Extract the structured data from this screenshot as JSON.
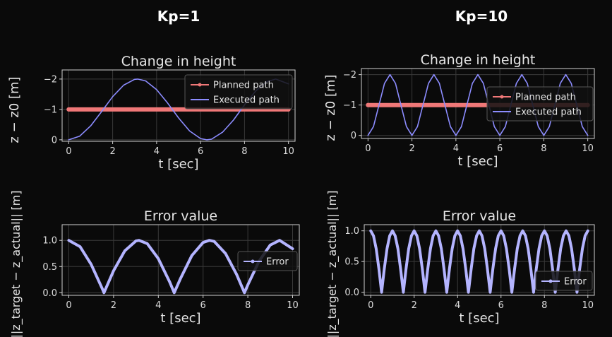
{
  "columns": [
    {
      "title": "Kp=1"
    },
    {
      "title": "Kp=10"
    }
  ],
  "colors": {
    "background": "#0a0a0a",
    "planned": "#f07878",
    "executed": "#8c8cff",
    "error": "#b4b4ff",
    "grid": "#3a3a3a",
    "axis": "#d0d0d0"
  },
  "chart_data": [
    {
      "id": "kp1-height",
      "type": "line",
      "title": "Change in height",
      "xlabel": "t [sec]",
      "ylabel": "z − z0 [m]",
      "xlim": [
        -0.3,
        10.3
      ],
      "ylim": [
        0.05,
        -2.3
      ],
      "y_inverted": true,
      "x_ticks": [
        0,
        2,
        4,
        6,
        8,
        10
      ],
      "y_ticks": [
        -2,
        -1,
        0
      ],
      "x_tick_labels": [
        "0",
        "2",
        "4",
        "6",
        "8",
        "10"
      ],
      "y_tick_labels": [
        "−2",
        "−1",
        "0"
      ],
      "grid": true,
      "legend": "upper-right",
      "series": [
        {
          "name": "Planned path",
          "role": "planned",
          "x": [
            0,
            10
          ],
          "y": [
            -1,
            -1
          ]
        },
        {
          "name": "Executed path",
          "role": "executed",
          "x": [
            0,
            0.5,
            1,
            1.5,
            2,
            2.5,
            3,
            3.14,
            3.5,
            4,
            4.5,
            5,
            5.5,
            6,
            6.28,
            6.5,
            7,
            7.5,
            8,
            8.5,
            9,
            9.42,
            10
          ],
          "y": [
            0,
            -0.12,
            -0.46,
            -0.93,
            -1.42,
            -1.8,
            -1.99,
            -2.0,
            -1.94,
            -1.65,
            -1.21,
            -0.72,
            -0.29,
            -0.04,
            0,
            -0.02,
            -0.25,
            -0.65,
            -1.15,
            -1.6,
            -1.91,
            -2.0,
            -1.84
          ]
        }
      ]
    },
    {
      "id": "kp1-error",
      "type": "line",
      "title": "Error value",
      "xlabel": "t [sec]",
      "ylabel": "||z_target − z_actual|| [m]",
      "xlim": [
        -0.3,
        10.3
      ],
      "ylim": [
        -0.05,
        1.3
      ],
      "x_ticks": [
        0,
        2,
        4,
        6,
        8,
        10
      ],
      "y_ticks": [
        0.0,
        0.5,
        1.0
      ],
      "x_tick_labels": [
        "0",
        "2",
        "4",
        "6",
        "8",
        "10"
      ],
      "y_tick_labels": [
        "0.0",
        "0.5",
        "1.0"
      ],
      "grid": true,
      "legend": "center-right",
      "series": [
        {
          "name": "Error",
          "role": "error",
          "x": [
            0,
            0.5,
            1,
            1.5,
            1.57,
            2,
            2.5,
            3,
            3.14,
            3.5,
            4,
            4.5,
            4.71,
            5,
            5.5,
            6,
            6.28,
            6.5,
            7,
            7.5,
            7.85,
            8,
            8.5,
            9,
            9.42,
            10
          ],
          "y": [
            1.0,
            0.88,
            0.54,
            0.07,
            0,
            0.42,
            0.8,
            0.99,
            1.0,
            0.94,
            0.65,
            0.21,
            0,
            0.28,
            0.71,
            0.96,
            1.0,
            0.98,
            0.75,
            0.35,
            0,
            0.15,
            0.6,
            0.91,
            1.0,
            0.84
          ]
        }
      ]
    },
    {
      "id": "kp10-height",
      "type": "line",
      "title": "Change in height",
      "xlabel": "t [sec]",
      "ylabel": "z − z0 [m]",
      "xlim": [
        -0.3,
        10.3
      ],
      "ylim": [
        0.1,
        -2.2
      ],
      "y_inverted": true,
      "x_ticks": [
        0,
        2,
        4,
        6,
        8,
        10
      ],
      "y_ticks": [
        -2,
        -1,
        0
      ],
      "x_tick_labels": [
        "0",
        "2",
        "4",
        "6",
        "8",
        "10"
      ],
      "y_tick_labels": [
        "−2",
        "−1",
        "0"
      ],
      "grid": true,
      "legend": "center-right",
      "series": [
        {
          "name": "Planned path",
          "role": "planned",
          "x": [
            0,
            10
          ],
          "y": [
            -1,
            -1
          ]
        },
        {
          "name": "Executed path",
          "role": "executed",
          "x": [
            0,
            0.25,
            0.5,
            0.75,
            1.0,
            1.25,
            1.5,
            1.75,
            2.0,
            2.25,
            2.5,
            2.75,
            3.0,
            3.25,
            3.5,
            3.75,
            4.0,
            4.25,
            4.5,
            4.75,
            5.0,
            5.25,
            5.5,
            5.75,
            6.0,
            6.25,
            6.5,
            6.75,
            7.0,
            7.25,
            7.5,
            7.75,
            8.0,
            8.25,
            8.5,
            8.75,
            9.0,
            9.25,
            9.5,
            9.75,
            10.0
          ],
          "y": [
            0,
            -0.29,
            -1.0,
            -1.71,
            -2.0,
            -1.71,
            -1.0,
            -0.29,
            0,
            -0.29,
            -1.0,
            -1.71,
            -2.0,
            -1.71,
            -1.0,
            -0.29,
            0,
            -0.29,
            -1.0,
            -1.71,
            -2.0,
            -1.71,
            -1.0,
            -0.29,
            0,
            -0.29,
            -1.0,
            -1.71,
            -2.0,
            -1.71,
            -1.0,
            -0.29,
            0,
            -0.29,
            -1.0,
            -1.71,
            -2.0,
            -1.71,
            -1.0,
            -0.29,
            0
          ]
        }
      ]
    },
    {
      "id": "kp10-error",
      "type": "line",
      "title": "Error value",
      "xlabel": "t [sec]",
      "ylabel": "||z_target − z_actual|| [m]",
      "xlim": [
        -0.3,
        10.3
      ],
      "ylim": [
        -0.05,
        1.1
      ],
      "x_ticks": [
        0,
        2,
        4,
        6,
        8,
        10
      ],
      "y_ticks": [
        0.0,
        0.5,
        1.0
      ],
      "x_tick_labels": [
        "0",
        "2",
        "4",
        "6",
        "8",
        "10"
      ],
      "y_tick_labels": [
        "0.0",
        "0.5",
        "1.0"
      ],
      "grid": true,
      "legend": "lower-right",
      "series": [
        {
          "name": "Error",
          "role": "error",
          "x": [
            0,
            0.125,
            0.25,
            0.375,
            0.5,
            0.625,
            0.75,
            0.875,
            1.0,
            1.125,
            1.25,
            1.375,
            1.5,
            1.625,
            1.75,
            1.875,
            2.0,
            2.125,
            2.25,
            2.375,
            2.5,
            2.625,
            2.75,
            2.875,
            3.0,
            3.125,
            3.25,
            3.375,
            3.5,
            3.625,
            3.75,
            3.875,
            4.0,
            4.125,
            4.25,
            4.375,
            4.5,
            4.625,
            4.75,
            4.875,
            5.0,
            5.125,
            5.25,
            5.375,
            5.5,
            5.625,
            5.75,
            5.875,
            6.0,
            6.125,
            6.25,
            6.375,
            6.5,
            6.625,
            6.75,
            6.875,
            7.0,
            7.125,
            7.25,
            7.375,
            7.5,
            7.625,
            7.75,
            7.875,
            8.0,
            8.125,
            8.25,
            8.375,
            8.5,
            8.625,
            8.75,
            8.875,
            9.0,
            9.125,
            9.25,
            9.375,
            9.5,
            9.625,
            9.75,
            9.875,
            10.0
          ],
          "y": [
            1.0,
            0.92,
            0.71,
            0.38,
            0,
            0.38,
            0.71,
            0.92,
            1.0,
            0.92,
            0.71,
            0.38,
            0,
            0.38,
            0.71,
            0.92,
            1.0,
            0.92,
            0.71,
            0.38,
            0,
            0.38,
            0.71,
            0.92,
            1.0,
            0.92,
            0.71,
            0.38,
            0,
            0.38,
            0.71,
            0.92,
            1.0,
            0.92,
            0.71,
            0.38,
            0,
            0.38,
            0.71,
            0.92,
            1.0,
            0.92,
            0.71,
            0.38,
            0,
            0.38,
            0.71,
            0.92,
            1.0,
            0.92,
            0.71,
            0.38,
            0,
            0.38,
            0.71,
            0.92,
            1.0,
            0.92,
            0.71,
            0.38,
            0,
            0.38,
            0.71,
            0.92,
            1.0,
            0.92,
            0.71,
            0.38,
            0,
            0.38,
            0.71,
            0.92,
            1.0,
            0.92,
            0.71,
            0.38,
            0,
            0.38,
            0.71,
            0.92,
            1.0
          ]
        }
      ]
    }
  ]
}
